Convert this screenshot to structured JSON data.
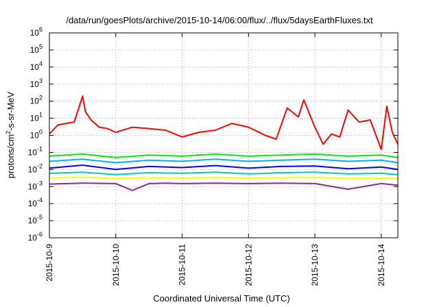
{
  "chart_data": {
    "type": "line",
    "title": "/data/run/goesPlots/archive/2015-10-14/06:00/flux/../flux/5daysEarthFluxes.txt",
    "xlabel": "Coordinated Universal Time (UTC)",
    "ylabel": {
      "base": "protons/cm",
      "sup": "2",
      "rest": "-s-sr-MeV"
    },
    "y_scale": "log",
    "ylim": [
      1e-06,
      1000000.0
    ],
    "y_ticks": [
      {
        "value": 1e-06,
        "base": "10",
        "exp": "-6"
      },
      {
        "value": 1e-05,
        "base": "10",
        "exp": "-5"
      },
      {
        "value": 0.0001,
        "base": "10",
        "exp": "-4"
      },
      {
        "value": 0.001,
        "base": "10",
        "exp": "-3"
      },
      {
        "value": 0.01,
        "base": "10",
        "exp": "-2"
      },
      {
        "value": 0.1,
        "base": "10",
        "exp": "-1"
      },
      {
        "value": 1,
        "base": "10",
        "exp": "0"
      },
      {
        "value": 10,
        "base": "10",
        "exp": "1"
      },
      {
        "value": 100,
        "base": "10",
        "exp": "2"
      },
      {
        "value": 1000,
        "base": "10",
        "exp": "3"
      },
      {
        "value": 10000,
        "base": "10",
        "exp": "4"
      },
      {
        "value": 100000,
        "base": "10",
        "exp": "5"
      },
      {
        "value": 1000000,
        "base": "10",
        "exp": "6"
      }
    ],
    "xlim": [
      "2015-10-09",
      "2015-10-14T06:00"
    ],
    "x_ticks": [
      "2015-10-9",
      "2015-10-10",
      "2015-10-11",
      "2015-10-12",
      "2015-10-13",
      "2015-10-14"
    ],
    "x_tick_dates": [
      "2015-10-09",
      "2015-10-10",
      "2015-10-11",
      "2015-10-12",
      "2015-10-13",
      "2015-10-14"
    ],
    "grid": true,
    "legend": "none",
    "series": [
      {
        "color": "#ff0000",
        "x": [
          "2015-10-09T00:00",
          "2015-10-09T03:00",
          "2015-10-09T06:00",
          "2015-10-09T09:00",
          "2015-10-09T12:00",
          "2015-10-09T13:00",
          "2015-10-09T15:00",
          "2015-10-09T18:00",
          "2015-10-09T21:00",
          "2015-10-10T00:00",
          "2015-10-10T06:00",
          "2015-10-10T12:00",
          "2015-10-10T18:00",
          "2015-10-11T00:00",
          "2015-10-11T06:00",
          "2015-10-11T12:00",
          "2015-10-11T18:00",
          "2015-10-12T00:00",
          "2015-10-12T06:00",
          "2015-10-12T10:00",
          "2015-10-12T14:00",
          "2015-10-12T18:00",
          "2015-10-12T20:00",
          "2015-10-13T00:00",
          "2015-10-13T03:00",
          "2015-10-13T06:00",
          "2015-10-13T09:00",
          "2015-10-13T12:00",
          "2015-10-13T16:00",
          "2015-10-13T20:00",
          "2015-10-14T00:00",
          "2015-10-14T02:00",
          "2015-10-14T04:00",
          "2015-10-14T06:00"
        ],
        "y": [
          1.2,
          4,
          5,
          6,
          200,
          25,
          8,
          3,
          2.5,
          1.5,
          3,
          2.5,
          2,
          0.8,
          1.5,
          2,
          5,
          3,
          1,
          0.6,
          40,
          12,
          120,
          3,
          0.3,
          1.2,
          0.8,
          30,
          6,
          8,
          0.15,
          50,
          1.5,
          0.3
        ]
      },
      {
        "color": "#00ee00",
        "x": [
          "2015-10-09T00:00",
          "2015-10-09T12:00",
          "2015-10-10T00:00",
          "2015-10-10T12:00",
          "2015-10-11T00:00",
          "2015-10-11T12:00",
          "2015-10-12T00:00",
          "2015-10-12T12:00",
          "2015-10-13T00:00",
          "2015-10-13T12:00",
          "2015-10-14T00:00",
          "2015-10-14T06:00"
        ],
        "y": [
          0.06,
          0.08,
          0.05,
          0.07,
          0.06,
          0.08,
          0.06,
          0.07,
          0.08,
          0.06,
          0.07,
          0.05
        ]
      },
      {
        "color": "#00b0ff",
        "x": [
          "2015-10-09T00:00",
          "2015-10-09T12:00",
          "2015-10-10T00:00",
          "2015-10-10T12:00",
          "2015-10-11T00:00",
          "2015-10-11T12:00",
          "2015-10-12T00:00",
          "2015-10-12T12:00",
          "2015-10-13T00:00",
          "2015-10-13T12:00",
          "2015-10-14T00:00",
          "2015-10-14T06:00"
        ],
        "y": [
          0.03,
          0.04,
          0.025,
          0.035,
          0.03,
          0.04,
          0.03,
          0.035,
          0.04,
          0.03,
          0.035,
          0.025
        ]
      },
      {
        "color": "#0000ff",
        "x": [
          "2015-10-09T00:00",
          "2015-10-09T12:00",
          "2015-10-10T00:00",
          "2015-10-10T12:00",
          "2015-10-11T00:00",
          "2015-10-11T12:00",
          "2015-10-12T00:00",
          "2015-10-12T12:00",
          "2015-10-13T00:00",
          "2015-10-13T12:00",
          "2015-10-14T00:00",
          "2015-10-14T06:00"
        ],
        "y": [
          0.012,
          0.018,
          0.01,
          0.015,
          0.013,
          0.017,
          0.012,
          0.015,
          0.016,
          0.011,
          0.014,
          0.01
        ]
      },
      {
        "color": "#00c8c8",
        "x": [
          "2015-10-09T00:00",
          "2015-10-09T12:00",
          "2015-10-10T00:00",
          "2015-10-10T12:00",
          "2015-10-11T00:00",
          "2015-10-11T12:00",
          "2015-10-12T00:00",
          "2015-10-12T12:00",
          "2015-10-13T00:00",
          "2015-10-13T12:00",
          "2015-10-14T00:00",
          "2015-10-14T06:00"
        ],
        "y": [
          0.006,
          0.007,
          0.005,
          0.0065,
          0.006,
          0.007,
          0.0055,
          0.0065,
          0.007,
          0.0055,
          0.006,
          0.005
        ]
      },
      {
        "color": "#ffff00",
        "x": [
          "2015-10-09T00:00",
          "2015-10-09T12:00",
          "2015-10-10T00:00",
          "2015-10-10T12:00",
          "2015-10-11T00:00",
          "2015-10-11T12:00",
          "2015-10-12T00:00",
          "2015-10-12T12:00",
          "2015-10-13T00:00",
          "2015-10-13T12:00",
          "2015-10-14T00:00",
          "2015-10-14T06:00"
        ],
        "y": [
          0.0032,
          0.0035,
          0.003,
          0.0033,
          0.0032,
          0.0034,
          0.0031,
          0.0033,
          0.0034,
          0.003,
          0.0032,
          0.003
        ]
      },
      {
        "color": "#8b2b8b",
        "x": [
          "2015-10-09T00:00",
          "2015-10-09T12:00",
          "2015-10-10T00:00",
          "2015-10-10T06:00",
          "2015-10-10T12:00",
          "2015-10-10T18:00",
          "2015-10-11T00:00",
          "2015-10-11T12:00",
          "2015-10-12T00:00",
          "2015-10-12T12:00",
          "2015-10-13T00:00",
          "2015-10-13T12:00",
          "2015-10-14T00:00",
          "2015-10-14T06:00"
        ],
        "y": [
          0.0014,
          0.0016,
          0.0015,
          0.0006,
          0.0015,
          0.0016,
          0.0015,
          0.0016,
          0.0015,
          0.0016,
          0.0015,
          0.0007,
          0.0015,
          0.0012
        ]
      }
    ]
  }
}
